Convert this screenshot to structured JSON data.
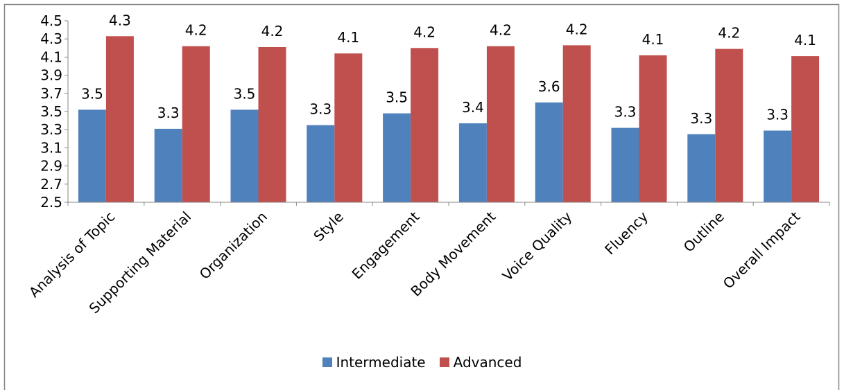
{
  "chart_data": {
    "type": "bar",
    "title": "",
    "xlabel": "",
    "ylabel": "",
    "ylim": [
      2.5,
      4.5
    ],
    "yticks": [
      2.5,
      2.7,
      2.9,
      3.1,
      3.3,
      3.5,
      3.7,
      3.9,
      4.1,
      4.3,
      4.5
    ],
    "grid": false,
    "legend_position": "bottom",
    "categories": [
      "Analysis of Topic",
      "Supporting Material",
      "Organization",
      "Style",
      "Engagement",
      "Body Movement",
      "Voice Quality",
      "Fluency",
      "Outline",
      "Overall Impact"
    ],
    "series": [
      {
        "name": "Intermediate",
        "color": "#4F81BD",
        "values": [
          3.52,
          3.31,
          3.52,
          3.35,
          3.48,
          3.37,
          3.6,
          3.32,
          3.25,
          3.29
        ],
        "labels": [
          "3.5",
          "3.3",
          "3.5",
          "3.3",
          "3.5",
          "3.4",
          "3.6",
          "3.3",
          "3.3",
          "3.3"
        ]
      },
      {
        "name": "Advanced",
        "color": "#C0504D",
        "values": [
          4.33,
          4.22,
          4.21,
          4.14,
          4.2,
          4.22,
          4.23,
          4.12,
          4.19,
          4.11
        ],
        "labels": [
          "4.3",
          "4.2",
          "4.2",
          "4.1",
          "4.2",
          "4.2",
          "4.2",
          "4.1",
          "4.2",
          "4.1"
        ]
      }
    ]
  }
}
